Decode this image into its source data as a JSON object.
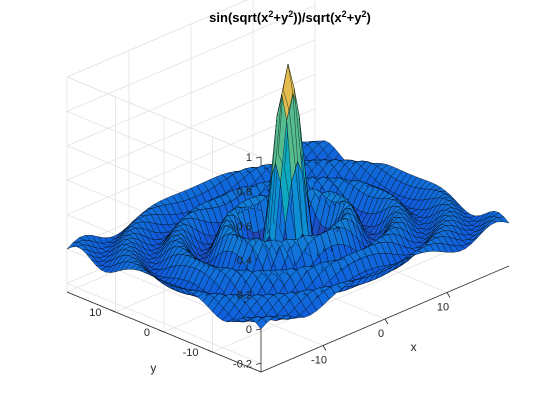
{
  "chart_data": {
    "type": "surface",
    "title": "sin(sqrt(x²+y²))/sqrt(x²+y²)",
    "function": "sin(sqrt(x^2+y^2))/sqrt(x^2+y^2)",
    "xlabel": "x",
    "ylabel": "y",
    "zlabel": "",
    "xlim": [
      -20,
      20
    ],
    "ylim": [
      -20,
      20
    ],
    "zlim": [
      -0.25,
      1
    ],
    "x_ticks": [
      -10,
      0,
      10
    ],
    "y_ticks": [
      -10,
      0,
      10
    ],
    "z_ticks": [
      -0.2,
      0,
      0.2,
      0.4,
      0.6,
      0.8,
      1
    ],
    "x_tick_labels": [
      "-10",
      "0",
      "10"
    ],
    "y_tick_labels": [
      "-10",
      "0",
      "10"
    ],
    "z_tick_labels": [
      "-0.2",
      "0",
      "0.2",
      "0.4",
      "0.6",
      "0.8",
      "1"
    ],
    "grid_resolution": 41,
    "grid": true,
    "colormap": "parula",
    "edge_color": "#000000"
  },
  "title_parts": {
    "a": "sin(sqrt(x",
    "b": "2",
    "c": "+y",
    "d": "2",
    "e": "))/sqrt(x",
    "f": "2",
    "g": "+y",
    "h": "2",
    "i": ")"
  }
}
